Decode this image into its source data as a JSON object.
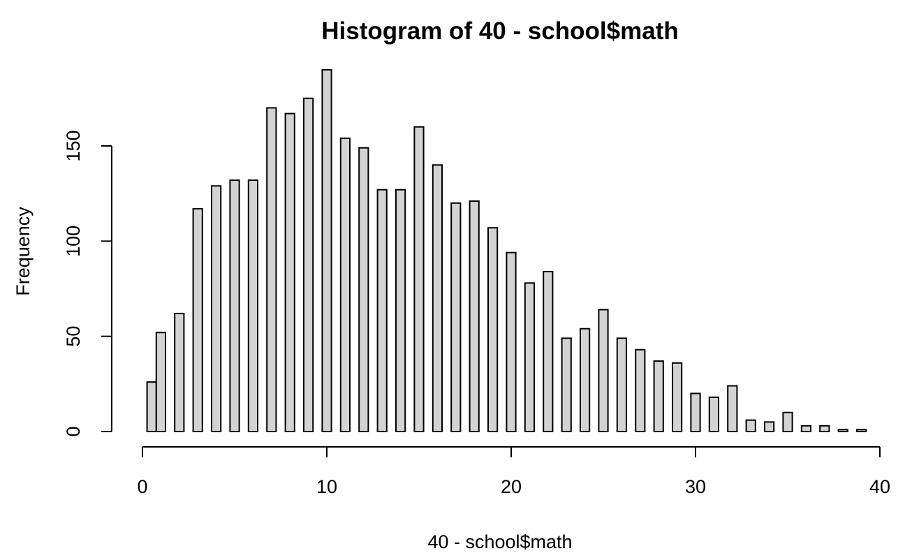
{
  "chart_data": {
    "type": "bar",
    "title": "Histogram of 40 - school$math",
    "xlabel": "40 - school$math",
    "ylabel": "Frequency",
    "x_ticks": [
      0,
      10,
      20,
      30,
      40
    ],
    "y_ticks": [
      0,
      50,
      100,
      150
    ],
    "xlim": [
      0,
      40
    ],
    "ylim": [
      0,
      190
    ],
    "bar_fill": "#d3d3d3",
    "bar_stroke": "#000000",
    "grid": false,
    "bins": [
      {
        "x": 0.25,
        "value": 26
      },
      {
        "x": 0.75,
        "value": 52
      },
      {
        "x": 1.75,
        "value": 62
      },
      {
        "x": 2.75,
        "value": 117
      },
      {
        "x": 3.75,
        "value": 129
      },
      {
        "x": 4.75,
        "value": 132
      },
      {
        "x": 5.75,
        "value": 132
      },
      {
        "x": 6.75,
        "value": 170
      },
      {
        "x": 7.75,
        "value": 167
      },
      {
        "x": 8.75,
        "value": 175
      },
      {
        "x": 9.75,
        "value": 190
      },
      {
        "x": 10.75,
        "value": 154
      },
      {
        "x": 11.75,
        "value": 149
      },
      {
        "x": 12.75,
        "value": 127
      },
      {
        "x": 13.75,
        "value": 127
      },
      {
        "x": 14.75,
        "value": 160
      },
      {
        "x": 15.75,
        "value": 140
      },
      {
        "x": 16.75,
        "value": 120
      },
      {
        "x": 17.75,
        "value": 121
      },
      {
        "x": 18.75,
        "value": 107
      },
      {
        "x": 19.75,
        "value": 94
      },
      {
        "x": 20.75,
        "value": 78
      },
      {
        "x": 21.75,
        "value": 84
      },
      {
        "x": 22.75,
        "value": 49
      },
      {
        "x": 23.75,
        "value": 54
      },
      {
        "x": 24.75,
        "value": 64
      },
      {
        "x": 25.75,
        "value": 49
      },
      {
        "x": 26.75,
        "value": 43
      },
      {
        "x": 27.75,
        "value": 37
      },
      {
        "x": 28.75,
        "value": 36
      },
      {
        "x": 29.75,
        "value": 20
      },
      {
        "x": 30.75,
        "value": 18
      },
      {
        "x": 31.75,
        "value": 24
      },
      {
        "x": 32.75,
        "value": 6
      },
      {
        "x": 33.75,
        "value": 5
      },
      {
        "x": 34.75,
        "value": 10
      },
      {
        "x": 35.75,
        "value": 3
      },
      {
        "x": 36.75,
        "value": 3
      },
      {
        "x": 37.75,
        "value": 1
      },
      {
        "x": 38.75,
        "value": 1
      }
    ]
  }
}
